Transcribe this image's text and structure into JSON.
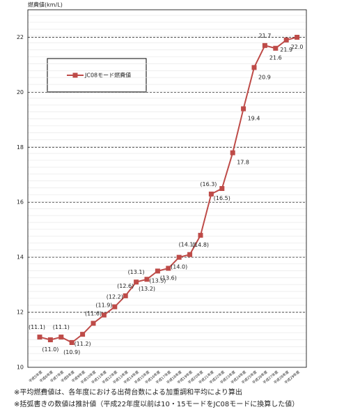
{
  "chart_data": {
    "type": "line",
    "y_label": "燃費値(km/L)",
    "categories": [
      "平成5年度",
      "平成6年度",
      "平成7年度",
      "平成8年度",
      "平成9年度",
      "平成10年度",
      "平成11年度",
      "平成12年度",
      "平成13年度",
      "平成14年度",
      "平成15年度",
      "平成16年度",
      "平成17年度",
      "平成18年度",
      "平成19年度",
      "平成20年度",
      "平成21年度",
      "平成22年度",
      "平成23年度",
      "平成24年度",
      "平成25年度",
      "平成26年度",
      "平成27年度",
      "平成28年度",
      "平成29年度"
    ],
    "series": [
      {
        "name": "JC08モード燃費値",
        "color": "#be4b48",
        "values": [
          11.1,
          11.0,
          11.1,
          10.9,
          11.2,
          11.6,
          11.9,
          12.2,
          12.6,
          13.1,
          13.2,
          13.5,
          13.6,
          14.0,
          14.1,
          14.8,
          16.3,
          16.5,
          17.8,
          19.4,
          20.9,
          21.7,
          21.6,
          21.9,
          22.0
        ],
        "value_labels": [
          "(11.1)",
          "(11.0)",
          "(11.1)",
          "(10.9)",
          "(11.2)",
          "(11.6)",
          "(11.9)",
          "(12.2)",
          "(12.6)",
          "(13.1)",
          "(13.2)",
          "(13.5)",
          "(13.6)",
          "(14.0)",
          "(14.1)",
          "(14.8)",
          "(16.3)",
          "(16.5)",
          "17.8",
          "19.4",
          "20.9",
          "21.7",
          "21.6",
          "21.9",
          "22.0"
        ]
      }
    ],
    "ylim": [
      10,
      23
    ],
    "yticks": [
      10,
      12,
      14,
      16,
      18,
      20,
      22
    ],
    "grid": true,
    "notes": [
      "※平均燃費値は、各年度における出荷台数による加重調和平均により算出",
      "※括弧書きの数値は推計値（平成22年度以前は10・15モードをJC08モードに換算した値）"
    ]
  }
}
